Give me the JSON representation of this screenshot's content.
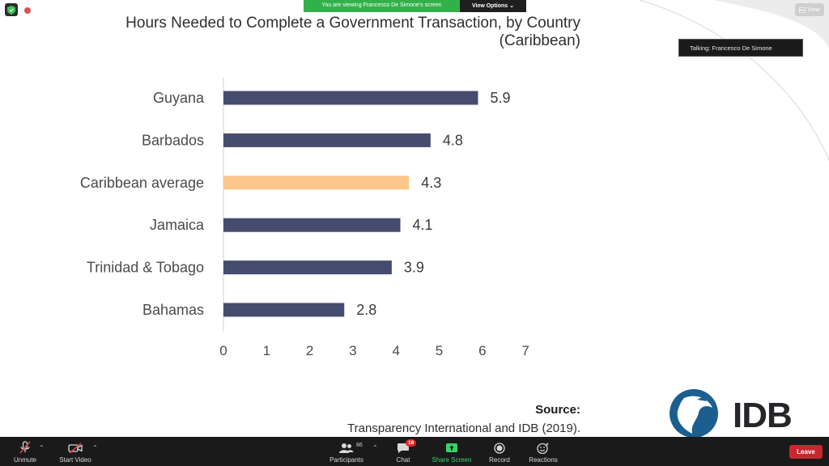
{
  "banner": {
    "viewing_text": "You are viewing Francesco De Simone's screen",
    "view_options_label": "View Options"
  },
  "view_button_label": "View",
  "talking_indicator": "Talking: Francesco De Simone",
  "slide": {
    "source_label": "Source:",
    "source_text": "Transparency International and IDB (2019).",
    "logo_text": "IDB"
  },
  "chart_data": {
    "type": "bar",
    "orientation": "horizontal",
    "title": "Hours Needed to Complete a Government Transaction, by Country (Caribbean)",
    "categories": [
      "Guyana",
      "Barbados",
      "Caribbean average",
      "Jamaica",
      "Trinidad & Tobago",
      "Bahamas"
    ],
    "values": [
      5.9,
      4.8,
      4.3,
      4.1,
      3.9,
      2.8
    ],
    "value_labels": [
      "5.9",
      "4.8",
      "4.3",
      "4.1",
      "3.9",
      "2.8"
    ],
    "highlight_category": "Caribbean average",
    "colors": {
      "default": "#454c6e",
      "highlight": "#fdc68a"
    },
    "xlim": [
      0,
      7
    ],
    "x_ticks": [
      "0",
      "1",
      "2",
      "3",
      "4",
      "5",
      "6",
      "7"
    ],
    "xlabel": "",
    "ylabel": "",
    "grid": false,
    "legend": "none"
  },
  "toolbar": {
    "unmute_label": "Unmute",
    "start_video_label": "Start Video",
    "participants_label": "Participants",
    "participants_count": "86",
    "chat_label": "Chat",
    "chat_badge": "16",
    "share_screen_label": "Share Screen",
    "record_label": "Record",
    "reactions_label": "Reactions",
    "leave_label": "Leave"
  },
  "icons": {
    "shield": "shield-icon",
    "record_dot": "recording-dot-icon",
    "microphone": "microphone-muted-icon",
    "video": "video-off-icon",
    "participants": "participants-icon",
    "chat": "chat-icon",
    "share": "share-screen-icon",
    "record": "record-icon",
    "reactions": "reactions-icon"
  },
  "accent_colors": {
    "share_banner": "#32b14a",
    "leave": "#c8272f",
    "logo_blue": "#1a5f8f"
  }
}
